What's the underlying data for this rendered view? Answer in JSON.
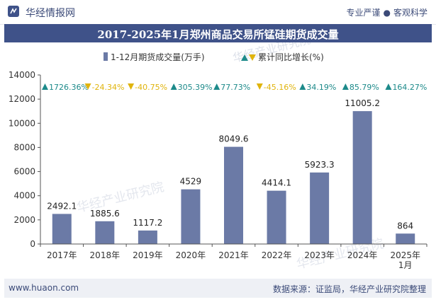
{
  "header": {
    "brand": "华经情报网",
    "slogan_left": "专业严谨",
    "slogan_dot": "●",
    "slogan_right": "客观科学"
  },
  "footer": {
    "website": "www.huaon.com",
    "source": "数据来源：证监局，华经产业研究院整理"
  },
  "watermark": "华经产业研究院",
  "colors": {
    "bar": "#6b7aa6",
    "up": "#1d8a8a",
    "down": "#e0b40c",
    "title_bg": "#3f5289",
    "footer_bg": "#eef0f5"
  },
  "chart_data": {
    "type": "bar",
    "title": "2017-2025年1月郑州商品交易所锰硅期货成交量",
    "categories": [
      "2017年",
      "2018年",
      "2019年",
      "2020年",
      "2021年",
      "2022年",
      "2023年",
      "2024年",
      "2025年\n1月"
    ],
    "series": [
      {
        "name": "1-12月期货成交量(万手)",
        "values": [
          2492.1,
          1885.6,
          1117.2,
          4529,
          8049.6,
          4414.1,
          5923.3,
          11005.2,
          864
        ]
      },
      {
        "name": "累计同比增长(%)",
        "values": [
          1726.36,
          -24.34,
          -40.75,
          305.39,
          77.73,
          -45.16,
          34.19,
          85.79,
          164.27
        ]
      }
    ],
    "value_labels": [
      "2492.1",
      "1885.6",
      "1117.2",
      "4529",
      "8049.6",
      "4414.1",
      "5923.3",
      "11005.2",
      "864"
    ],
    "growth_labels": [
      "1726.36%",
      "-24.34%",
      "-40.75%",
      "305.39%",
      "77.73%",
      "-45.16%",
      "34.19%",
      "85.79%",
      "164.27%"
    ],
    "ylim": [
      0,
      14000
    ],
    "yticks": [
      0,
      2000,
      4000,
      6000,
      8000,
      10000,
      12000,
      14000
    ],
    "legend": {
      "bar_label": "1-12月期货成交量(万手)",
      "growth_label": "累计同比增长(%)",
      "position": "top-center"
    }
  }
}
